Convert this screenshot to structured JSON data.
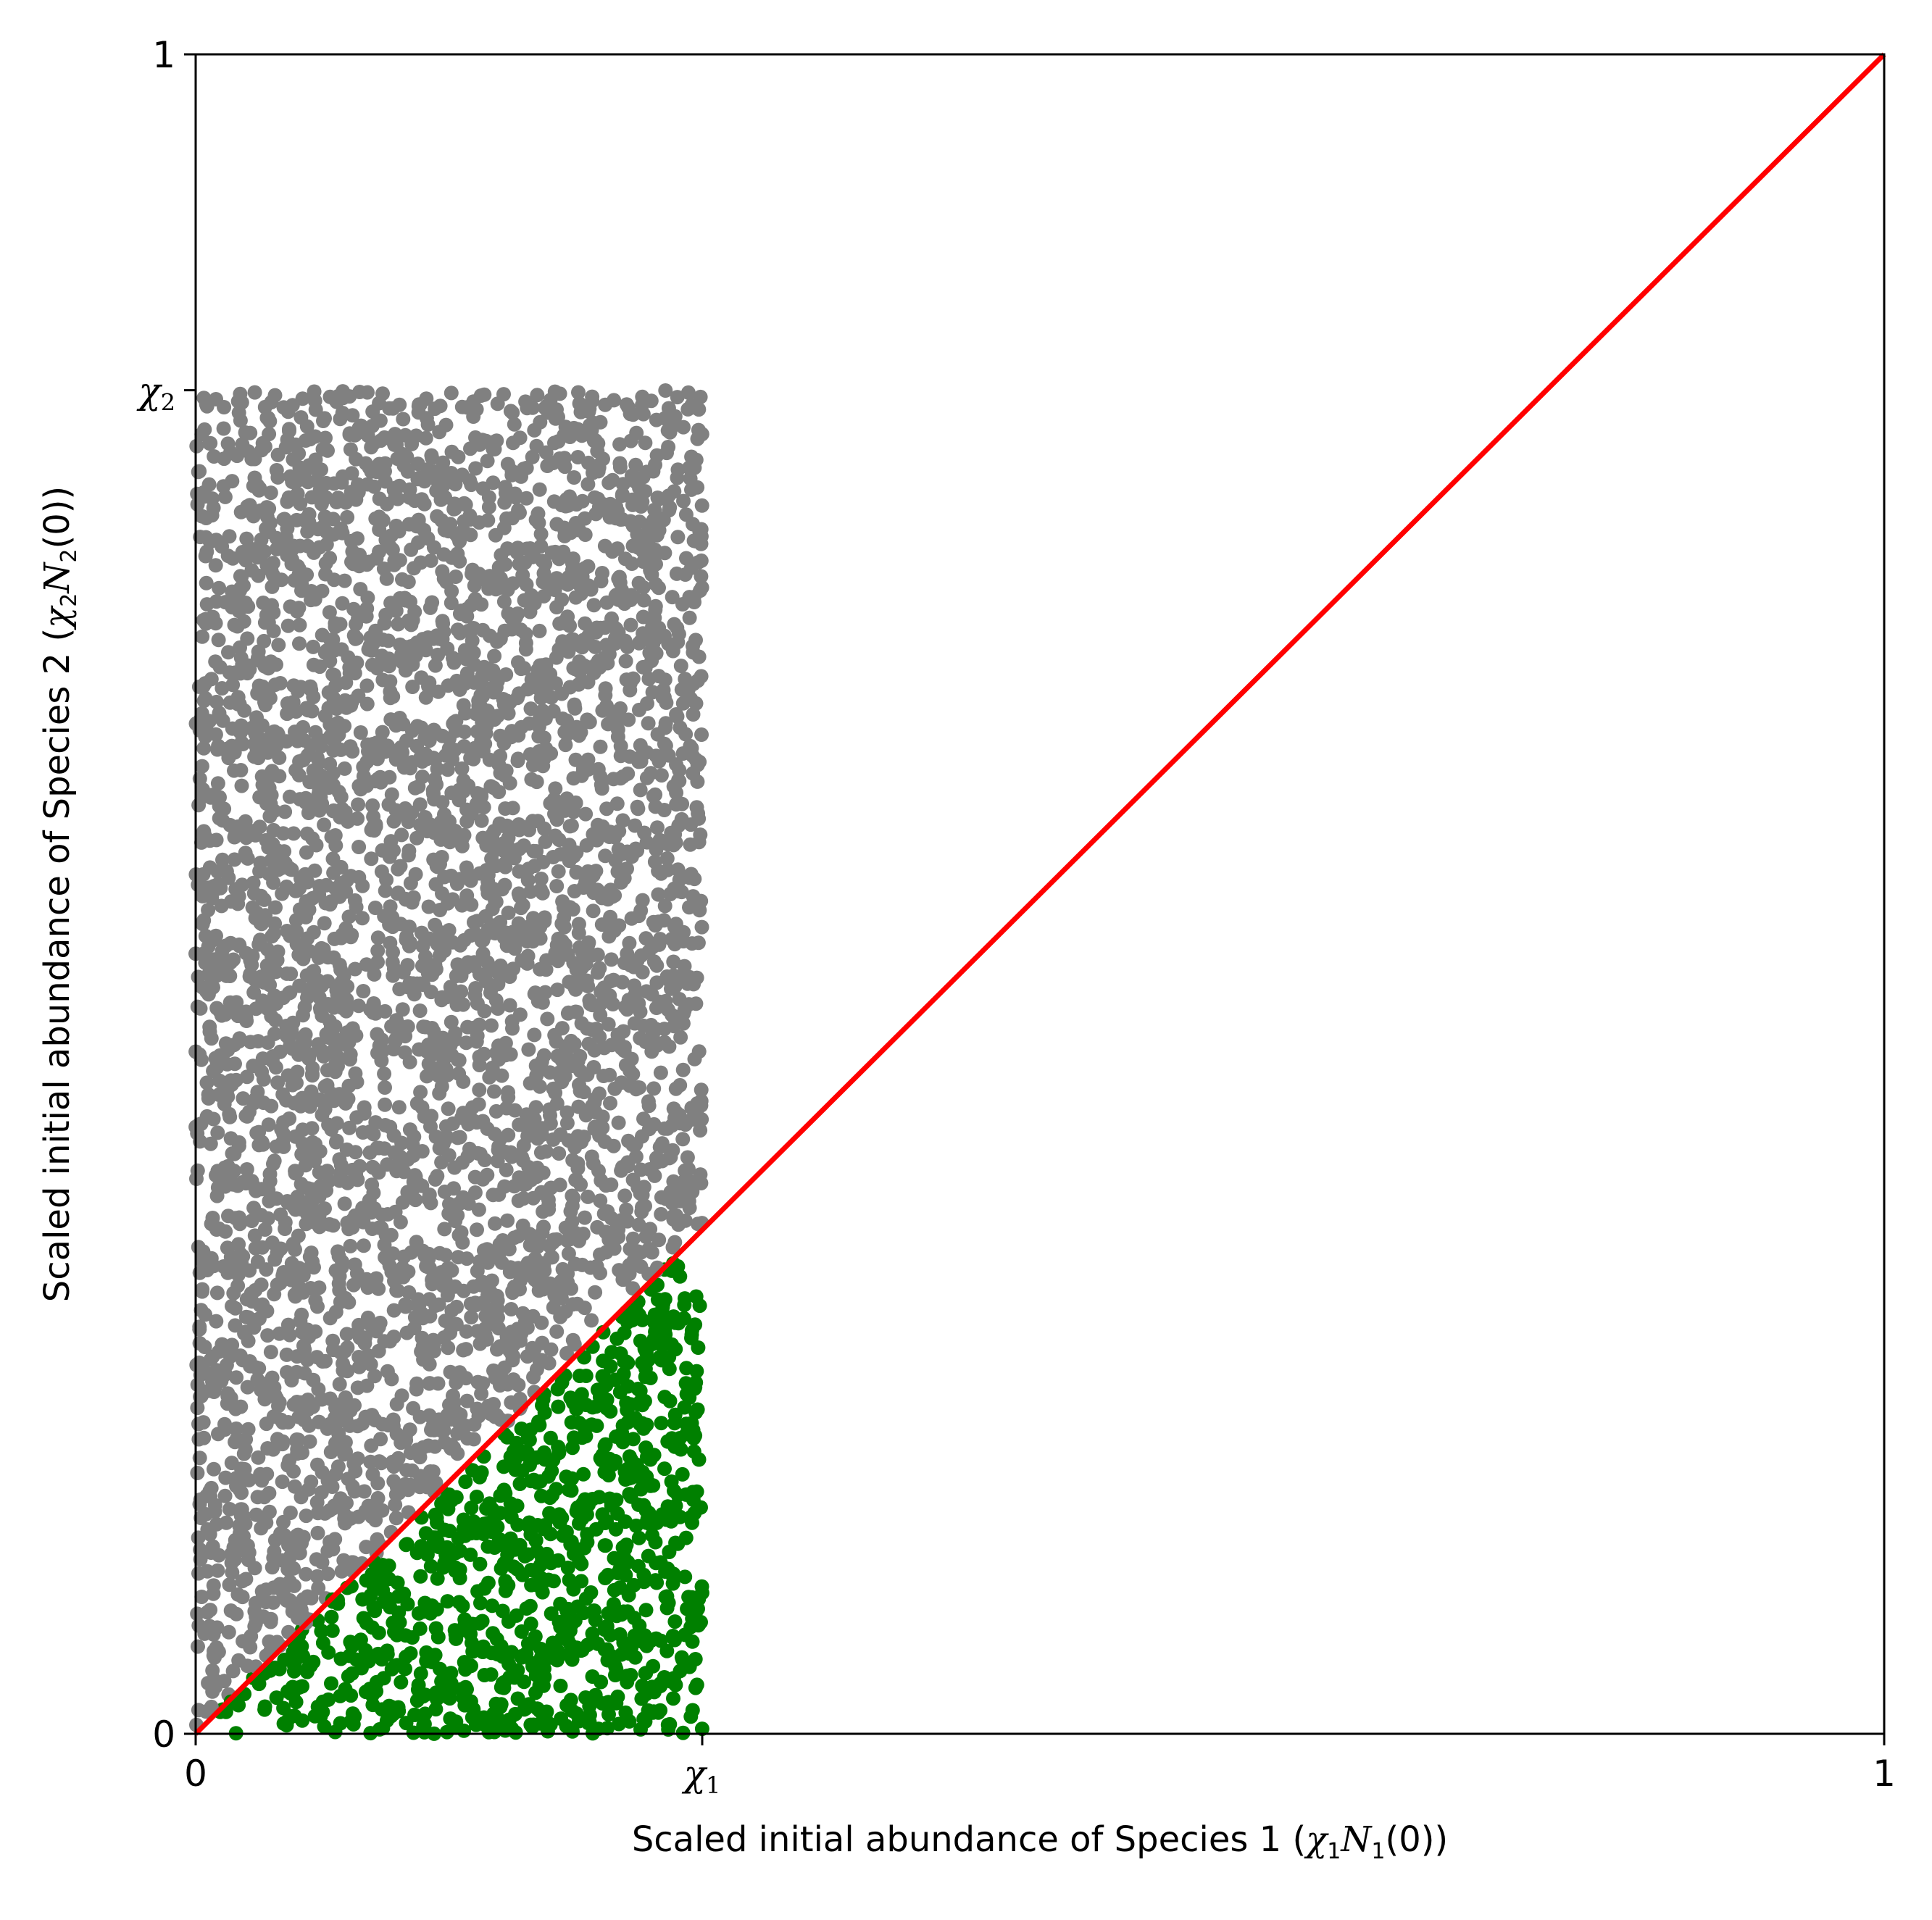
{
  "chart_data": {
    "type": "scatter",
    "title": "",
    "xlabel": "Scaled initial abundance of Species 1 (χ₁N₁(0))",
    "ylabel": "Scaled initial abundance of Species 2 (χ₂N₂(0))",
    "xlim": [
      0,
      1
    ],
    "ylim": [
      0,
      1
    ],
    "grid": false,
    "legend": "none",
    "x_ticks": [
      {
        "value": 0,
        "label": "0"
      },
      {
        "value": 0.3,
        "label": "χ",
        "subscript": "1"
      },
      {
        "value": 1,
        "label": "1"
      }
    ],
    "y_ticks": [
      {
        "value": 0,
        "label": "0"
      },
      {
        "value": 0.8,
        "label": "χ",
        "subscript": "2"
      },
      {
        "value": 1,
        "label": "1"
      }
    ],
    "scatter_region": {
      "x_range": [
        0,
        0.3
      ],
      "y_range": [
        0,
        0.8
      ],
      "approx_point_count": 5000
    },
    "series": [
      {
        "category": "above_diagonal",
        "color": "#808080",
        "rule": "y > x"
      },
      {
        "category": "below_diagonal",
        "color": "#008000",
        "rule": "y <= x"
      }
    ],
    "reference_line": {
      "x": [
        0,
        1
      ],
      "y": [
        0,
        1
      ],
      "color": "#ff0000"
    }
  },
  "x_axis_label_parts": {
    "prefix": "Scaled initial abundance of Species 1 (",
    "chi": "χ",
    "chi_sub": "1",
    "n": "N",
    "n_sub": "1",
    "suffix": "(0))"
  },
  "y_axis_label_parts": {
    "prefix": "Scaled initial abundance of Species 2 (",
    "chi": "χ",
    "chi_sub": "2",
    "n": "N",
    "n_sub": "2",
    "suffix": "(0))"
  }
}
